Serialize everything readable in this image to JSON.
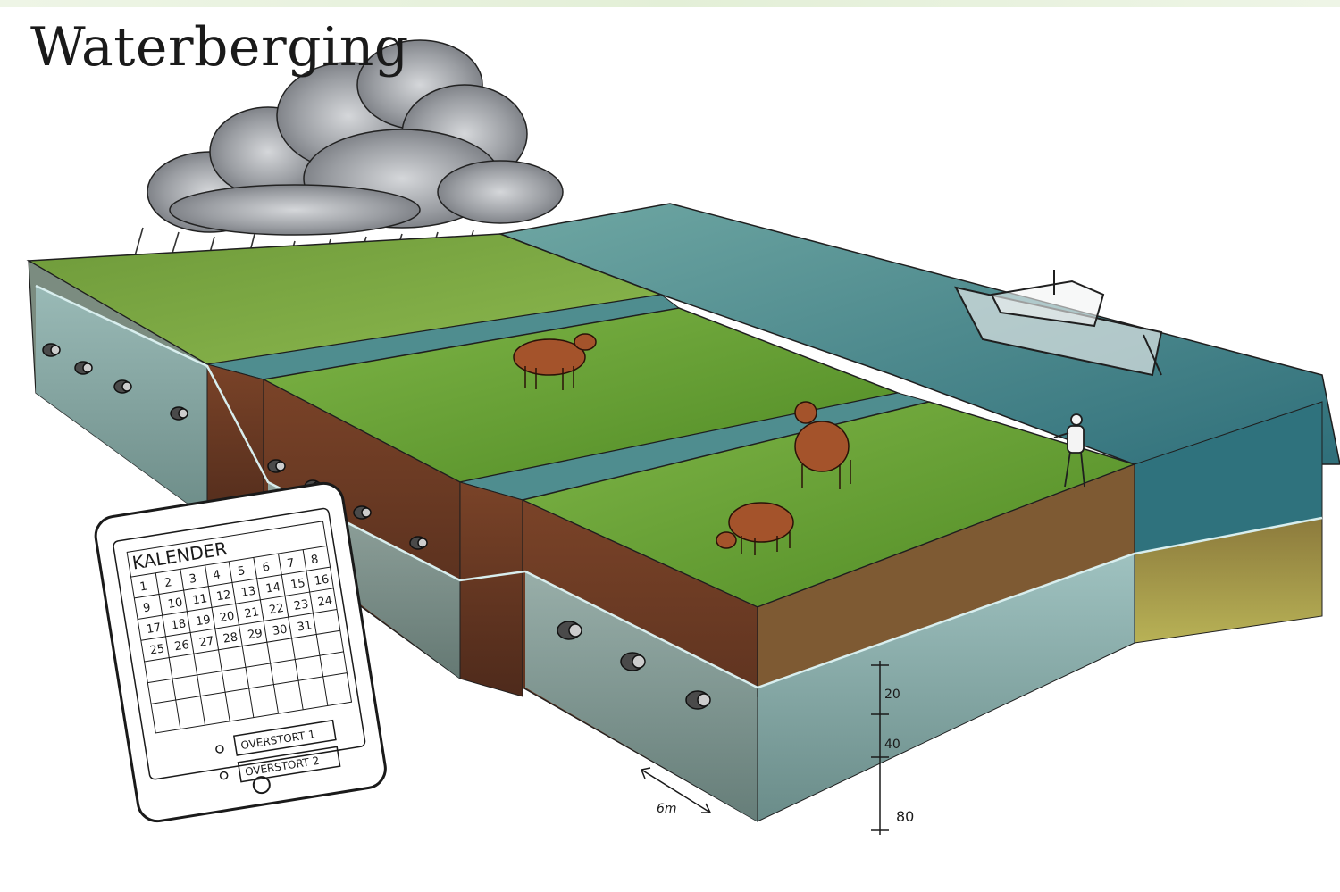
{
  "title": "Waterberging",
  "tablet": {
    "calendar_title": "KALENDER",
    "header_numbers": [
      "1",
      "2",
      "3",
      "4",
      "5",
      "6",
      "7",
      "8"
    ],
    "rows": [
      [
        "1",
        "2",
        "3",
        "4",
        "5",
        "6",
        "7",
        "8"
      ],
      [
        "9",
        "10",
        "11",
        "12",
        "13",
        "14",
        "15",
        "16"
      ],
      [
        "17",
        "18",
        "19",
        "20",
        "21",
        "22",
        "23",
        "24"
      ],
      [
        "25",
        "26",
        "27",
        "28",
        "29",
        "30",
        "31",
        ""
      ]
    ],
    "options": [
      {
        "label": "OVERSTORT 1"
      },
      {
        "label": "OVERSTORT 2"
      }
    ]
  },
  "dimensions": {
    "depth_1": "20",
    "depth_2": "40",
    "depth_3": "80",
    "width_label": "6m"
  },
  "colors": {
    "grass": "#5f9a2c",
    "grass_light": "#7cb342",
    "soil": "#6d3b25",
    "water": "#5d9a9a",
    "groundwater": "#a9c7c4",
    "cloud": "#8a8d93",
    "cow": "#a4532b"
  }
}
